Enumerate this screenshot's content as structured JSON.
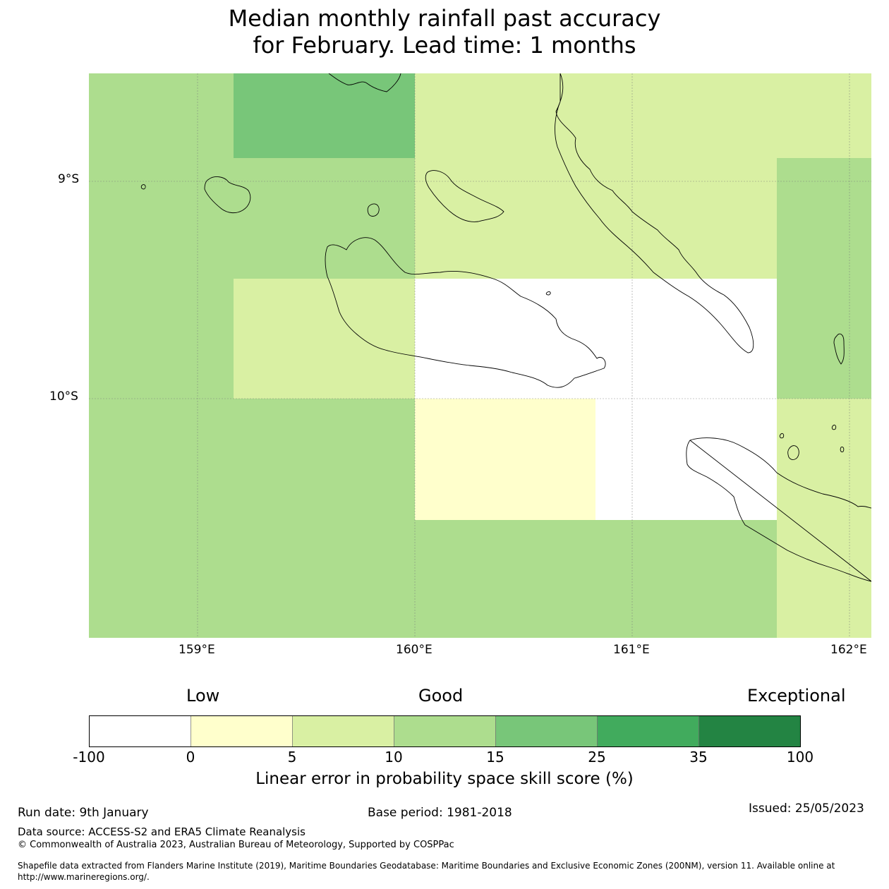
{
  "title": {
    "line1": "Median monthly rainfall past accuracy",
    "line2": "for February. Lead time: 1 months"
  },
  "map": {
    "lat_labels": [
      "9°S",
      "10°S"
    ],
    "lon_labels": [
      "159°E",
      "160°E",
      "161°E",
      "162°E"
    ],
    "extent": {
      "lon_min": 158.5,
      "lon_max": 162.1,
      "lat_north": -8.5,
      "lat_south": -11.1
    },
    "grid_colors": {
      "white": "#ffffff",
      "c0_5": "#ffffcc",
      "c5_10": "#d9f0a3",
      "c10_15": "#addd8e",
      "c15_25": "#78c679",
      "c25_35": "#41ab5d",
      "c35_100": "#238443"
    }
  },
  "colorbar": {
    "categories": [
      "Low",
      "Good",
      "Exceptional"
    ],
    "tick_labels": [
      "-100",
      "0",
      "5",
      "10",
      "15",
      "25",
      "35",
      "100"
    ],
    "colors": [
      "#ffffff",
      "#ffffcc",
      "#d9f0a3",
      "#addd8e",
      "#78c679",
      "#41ab5d",
      "#238443"
    ],
    "title": "Linear error in probability space skill score (%)"
  },
  "footer": {
    "run_date": "Run date: 9th January",
    "base_period": "Base period: 1981-2018",
    "issued": "Issued: 25/05/2023",
    "data_source": "Data source: ACCESS-S2 and ERA5 Climate Reanalysis",
    "copyright": "© Commonwealth of Australia 2023, Australian Bureau of Meteorology, Supported by COSPPac",
    "shapefile_line1": "Shapefile data extracted from Flanders Marine Institute (2019), Maritime Boundaries Geodatabase: Maritime Boundaries and Exclusive Economic Zones (200NM), version 11. Available online at",
    "shapefile_line2": "http://www.marineregions.org/."
  }
}
